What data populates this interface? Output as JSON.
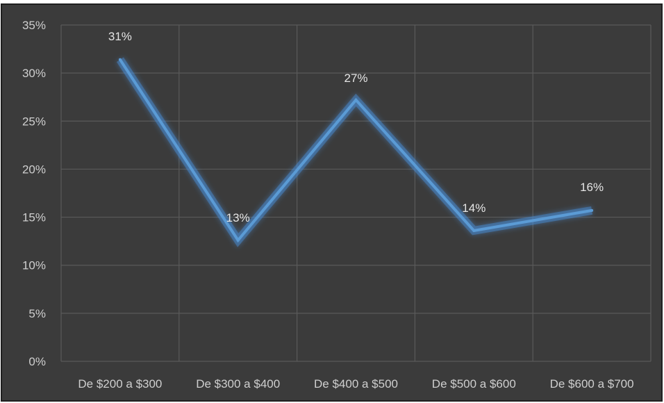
{
  "chart_data": {
    "type": "line",
    "categories": [
      "De $200 a $300",
      "De $300 a $400",
      "De $400 a $500",
      "De $500 a $600",
      "De $600 a $700"
    ],
    "series": [
      {
        "values": [
          31.4,
          12.6,
          27.2,
          13.6,
          15.7
        ],
        "data_labels": [
          "31%",
          "13%",
          "27%",
          "14%",
          "16%"
        ]
      }
    ],
    "y_ticks": [
      "0%",
      "5%",
      "10%",
      "15%",
      "20%",
      "25%",
      "30%",
      "35%"
    ],
    "ylim": [
      0,
      35
    ],
    "ytick_step": 5,
    "grid": true,
    "colors": {
      "background": "#3b3b3b",
      "border": "#1f1f1f",
      "grid": "#5a5a5a",
      "line": "#5b9bd5",
      "glow": "#4a8fd6",
      "text": "#cfcfcf"
    }
  }
}
